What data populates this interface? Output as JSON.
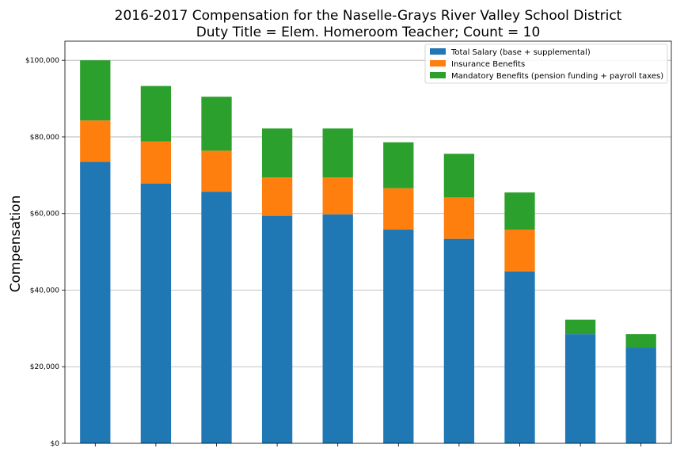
{
  "chart_data": {
    "type": "bar",
    "stacked": true,
    "title_line1": "2016-2017 Compensation for the Naselle-Grays River Valley School District",
    "title_line2": "Duty Title = Elem. Homeroom Teacher; Count = 10",
    "xlabel": "",
    "ylabel": "Compensation",
    "ylim": [
      0,
      105000
    ],
    "yticks": [
      0,
      20000,
      40000,
      60000,
      80000,
      100000
    ],
    "ytick_labels": [
      "$0",
      "$20,000",
      "$40,000",
      "$60,000",
      "$80,000",
      "$100,000"
    ],
    "grid": "y",
    "legend_position": "top-right",
    "categories": [
      "",
      "",
      "",
      "",
      "",
      "",
      "",
      "",
      "",
      ""
    ],
    "series": [
      {
        "name": "Total Salary (base + supplemental)",
        "color": "#1f77b4",
        "values": [
          73500,
          67800,
          65700,
          59400,
          59800,
          55800,
          53400,
          44900,
          28500,
          25000
        ]
      },
      {
        "name": "Insurance Benefits",
        "color": "#ff7f0e",
        "values": [
          10800,
          11000,
          10700,
          10000,
          9600,
          10800,
          10800,
          10900,
          0,
          0
        ]
      },
      {
        "name": "Mandatory Benefits (pension funding + payroll taxes)",
        "color": "#2ca02c",
        "values": [
          15700,
          14500,
          14100,
          12800,
          12800,
          12000,
          11400,
          9700,
          3800,
          3500
        ]
      }
    ]
  }
}
